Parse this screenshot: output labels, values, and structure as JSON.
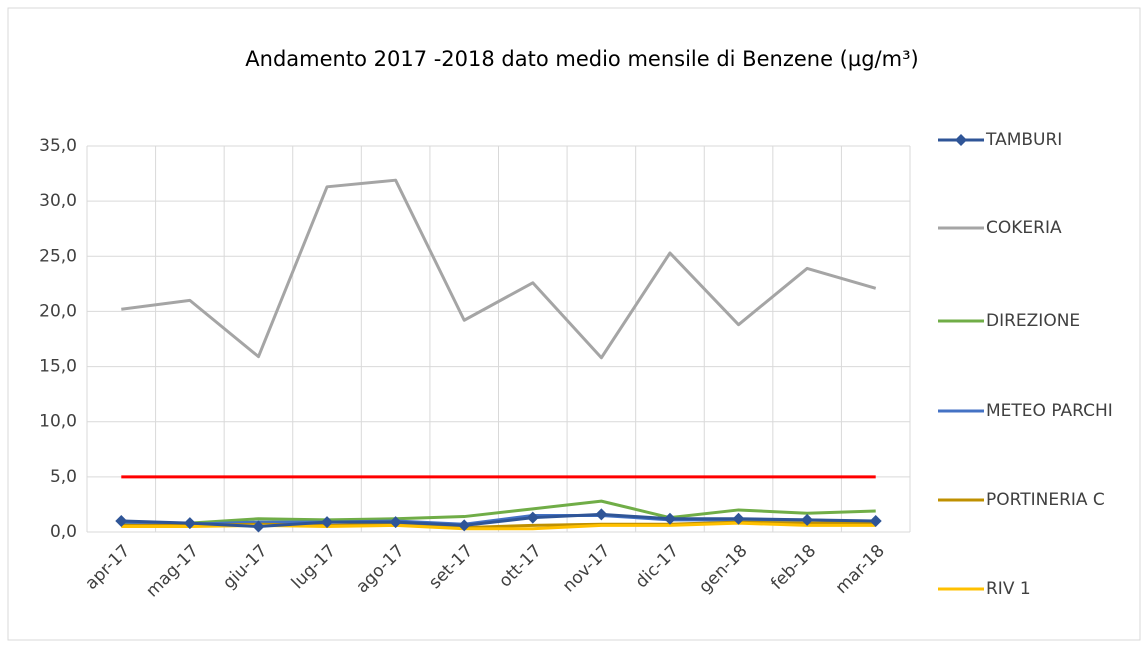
{
  "chart_data": {
    "type": "line",
    "title": "Andamento 2017 -2018 dato medio mensile di Benzene (µg/m³)",
    "categories": [
      "apr-17",
      "mag-17",
      "giu-17",
      "lug-17",
      "ago-17",
      "set-17",
      "ott-17",
      "nov-17",
      "dic-17",
      "gen-18",
      "feb-18",
      "mar-18"
    ],
    "series": [
      {
        "name": "TAMBURI",
        "color": "#2f5597",
        "marker": "diamond",
        "values": [
          1.0,
          0.8,
          0.5,
          0.9,
          0.9,
          0.6,
          1.3,
          1.6,
          1.2,
          1.2,
          1.1,
          1.0
        ]
      },
      {
        "name": "COKERIA",
        "color": "#a5a5a5",
        "values": [
          20.2,
          21.0,
          15.9,
          31.3,
          31.9,
          19.2,
          22.6,
          15.8,
          25.3,
          18.8,
          23.9,
          22.1
        ]
      },
      {
        "name": "DIREZIONE",
        "color": "#70ad47",
        "values": [
          0.7,
          0.8,
          1.2,
          1.1,
          1.2,
          1.4,
          2.1,
          2.8,
          1.3,
          2.0,
          1.7,
          1.9
        ]
      },
      {
        "name": "METEO PARCHI",
        "color": "#4472c4",
        "values": [
          0.9,
          0.7,
          0.9,
          0.9,
          1.0,
          0.7,
          1.5,
          1.5,
          1.1,
          1.1,
          1.1,
          0.9
        ]
      },
      {
        "name": "PORTINERIA C",
        "color": "#bf9000",
        "values": [
          0.6,
          0.6,
          0.7,
          0.6,
          0.7,
          0.4,
          0.6,
          0.7,
          0.7,
          0.9,
          0.8,
          0.8
        ]
      },
      {
        "name": "RIV 1",
        "color": "#ffc000",
        "values": [
          0.5,
          0.5,
          0.6,
          0.5,
          0.6,
          0.3,
          0.3,
          0.6,
          0.6,
          0.8,
          0.6,
          0.6
        ]
      }
    ],
    "reference_line": {
      "value": 5,
      "color": "#ff0000"
    },
    "ylim": [
      0,
      35
    ],
    "yticks": [
      {
        "value": 0,
        "label": "0,0"
      },
      {
        "value": 5,
        "label": "5,0"
      },
      {
        "value": 10,
        "label": "10,0"
      },
      {
        "value": 15,
        "label": "15,0"
      },
      {
        "value": 20,
        "label": "20,0"
      },
      {
        "value": 25,
        "label": "25,0"
      },
      {
        "value": 30,
        "label": "30,0"
      },
      {
        "value": 35,
        "label": "35,0"
      }
    ],
    "grid": true
  }
}
